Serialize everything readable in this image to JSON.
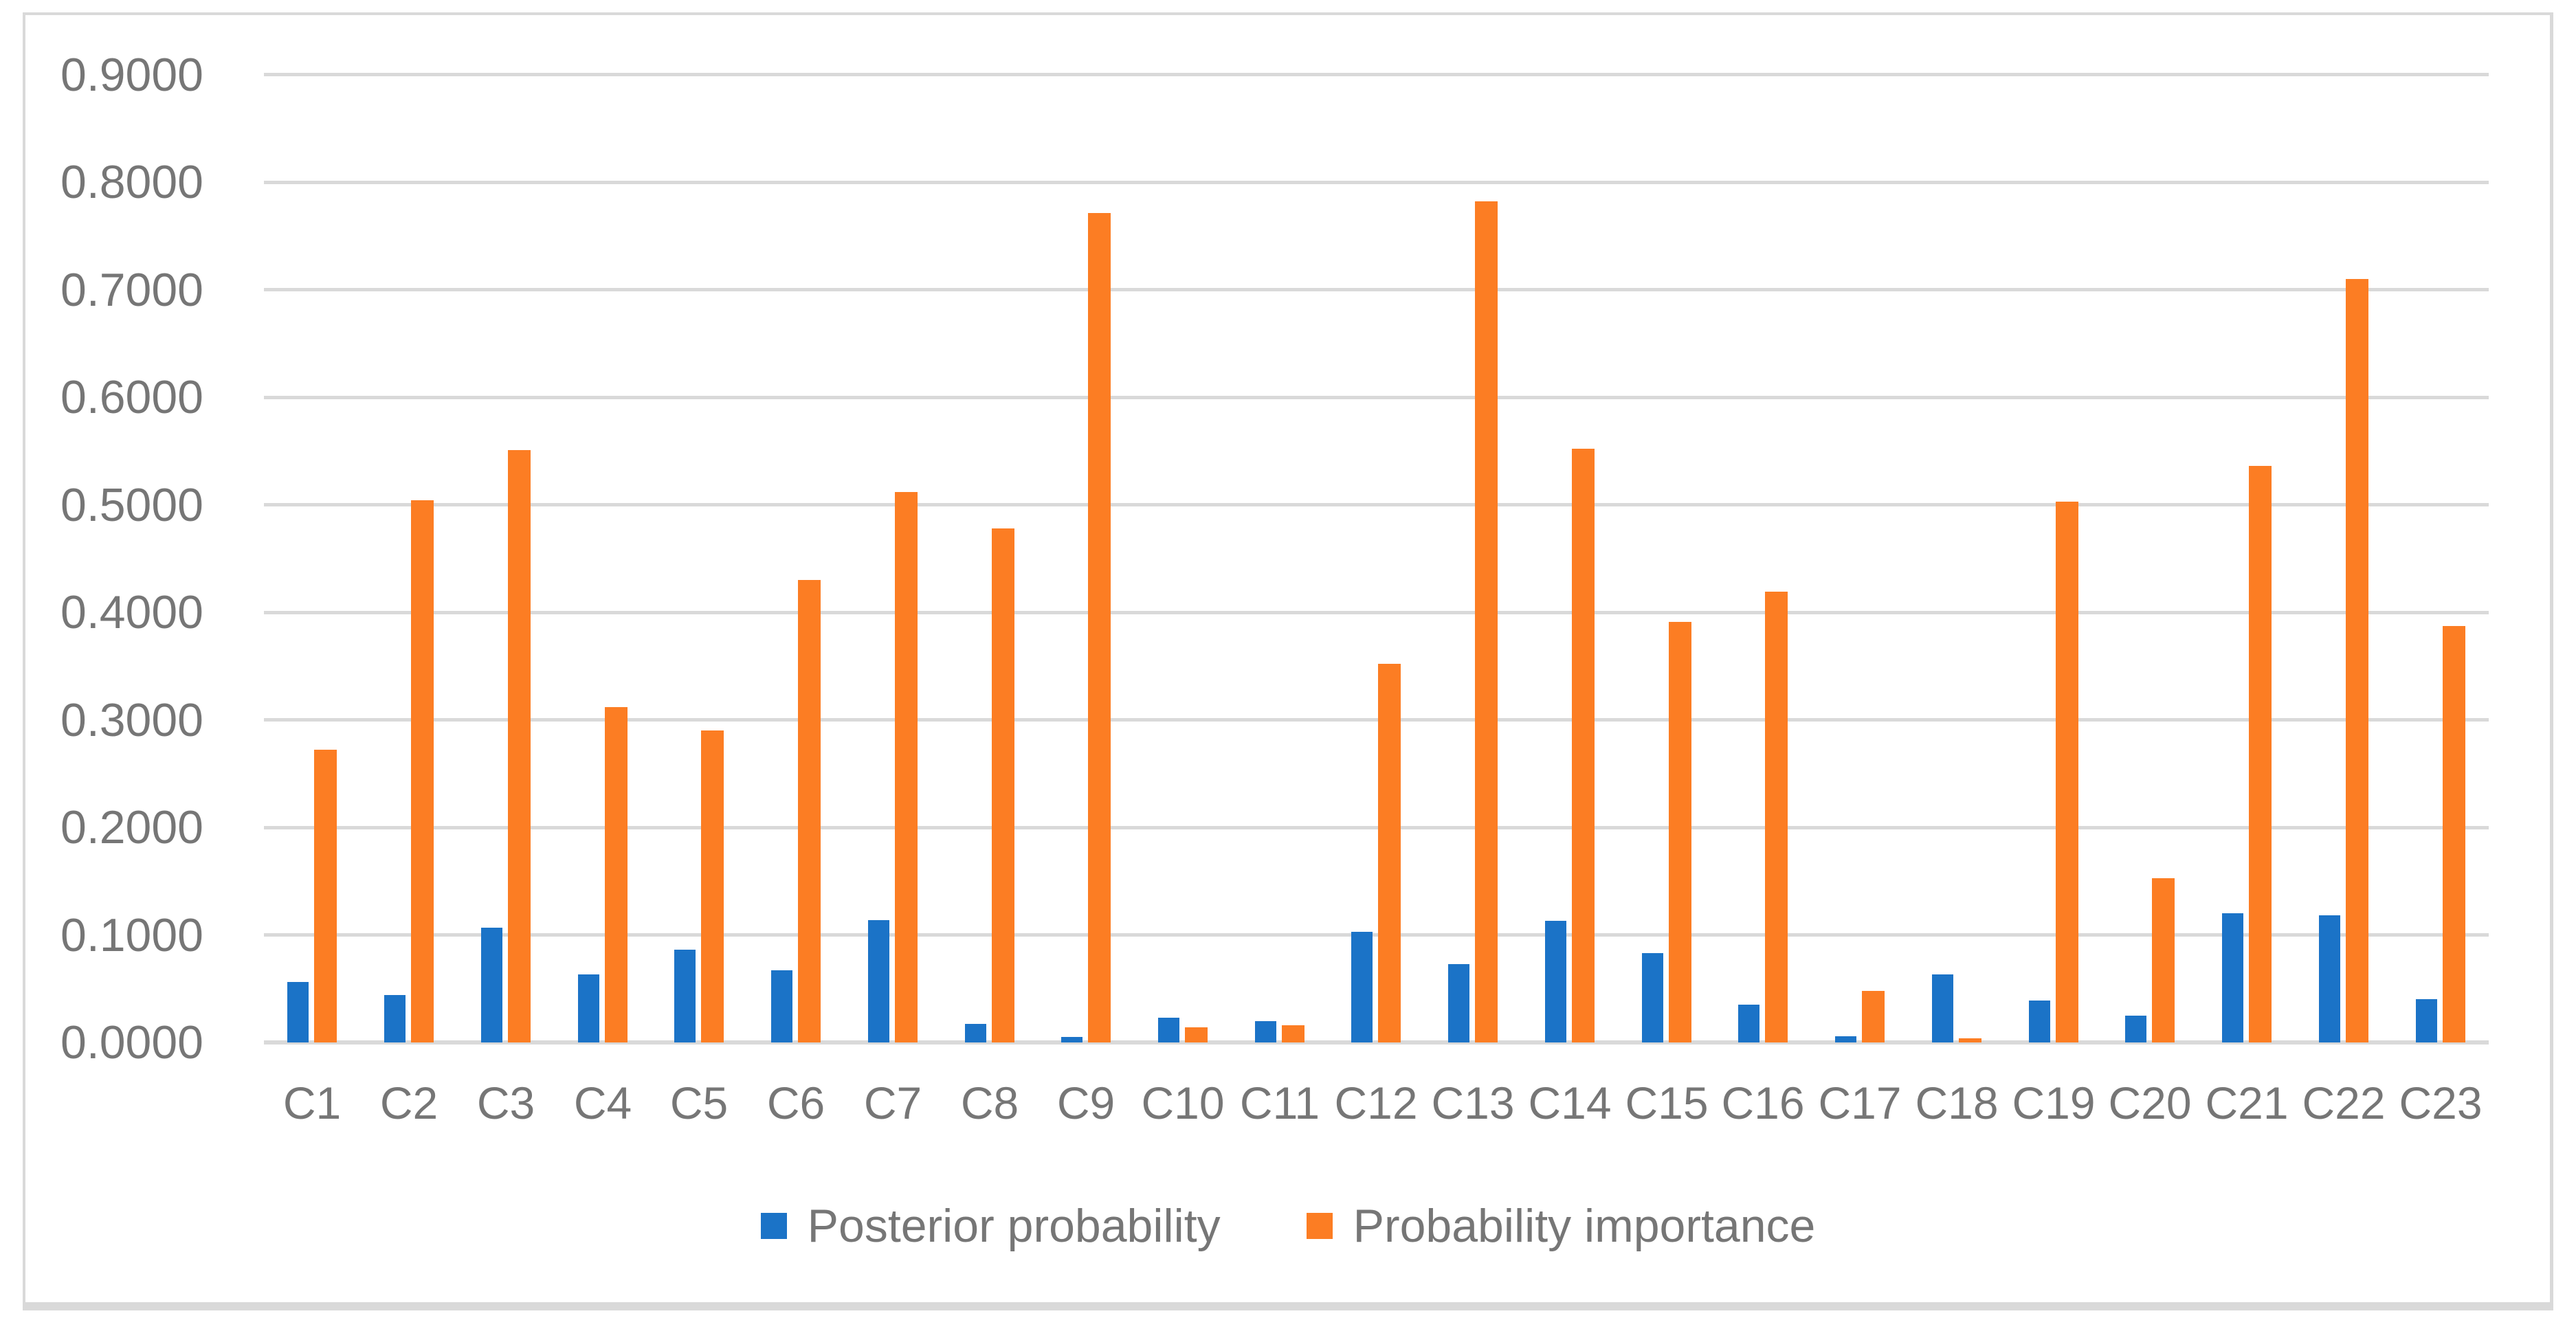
{
  "chart_data": {
    "type": "bar",
    "title": "",
    "xlabel": "",
    "ylabel": "",
    "categories": [
      "C1",
      "C2",
      "C3",
      "C4",
      "C5",
      "C6",
      "C7",
      "C8",
      "C9",
      "C10",
      "C11",
      "C12",
      "C13",
      "C14",
      "C15",
      "C16",
      "C17",
      "C18",
      "C19",
      "C20",
      "C21",
      "C22",
      "C23"
    ],
    "series": [
      {
        "name": "Posterior probability",
        "color": "#1B73C7",
        "values": [
          0.056,
          0.044,
          0.107,
          0.063,
          0.086,
          0.067,
          0.114,
          0.017,
          0.005,
          0.023,
          0.02,
          0.103,
          0.073,
          0.113,
          0.083,
          0.035,
          0.006,
          0.063,
          0.039,
          0.025,
          0.12,
          0.118,
          0.04
        ]
      },
      {
        "name": "Probability importance",
        "color": "#FC7D23",
        "values": [
          0.272,
          0.504,
          0.551,
          0.312,
          0.29,
          0.43,
          0.512,
          0.478,
          0.771,
          0.014,
          0.016,
          0.352,
          0.782,
          0.552,
          0.391,
          0.419,
          0.048,
          0.004,
          0.503,
          0.153,
          0.536,
          0.71,
          0.387
        ]
      }
    ],
    "ylim": [
      0.0,
      0.9333
    ],
    "yticks": [
      0.0,
      0.1,
      0.2,
      0.3,
      0.4,
      0.5,
      0.6,
      0.7,
      0.8,
      0.9
    ],
    "ytick_labels": [
      "0.0000",
      "0.1000",
      "0.2000",
      "0.3000",
      "0.4000",
      "0.5000",
      "0.6000",
      "0.7000",
      "0.8000",
      "0.9000"
    ],
    "grid": true,
    "legend_position": "bottom"
  },
  "legend": {
    "items": [
      {
        "label": "Posterior probability",
        "color": "#1B73C7"
      },
      {
        "label": "Probability importance",
        "color": "#FC7D23"
      }
    ]
  },
  "colors": {
    "series_blue": "#1B73C7",
    "series_orange": "#FC7D23",
    "gridline": "#D9D9D9",
    "axis_line": "#D9D9D9",
    "frame_border": "#D9D9D9",
    "text": "#767676",
    "background": "#FFFFFF"
  }
}
